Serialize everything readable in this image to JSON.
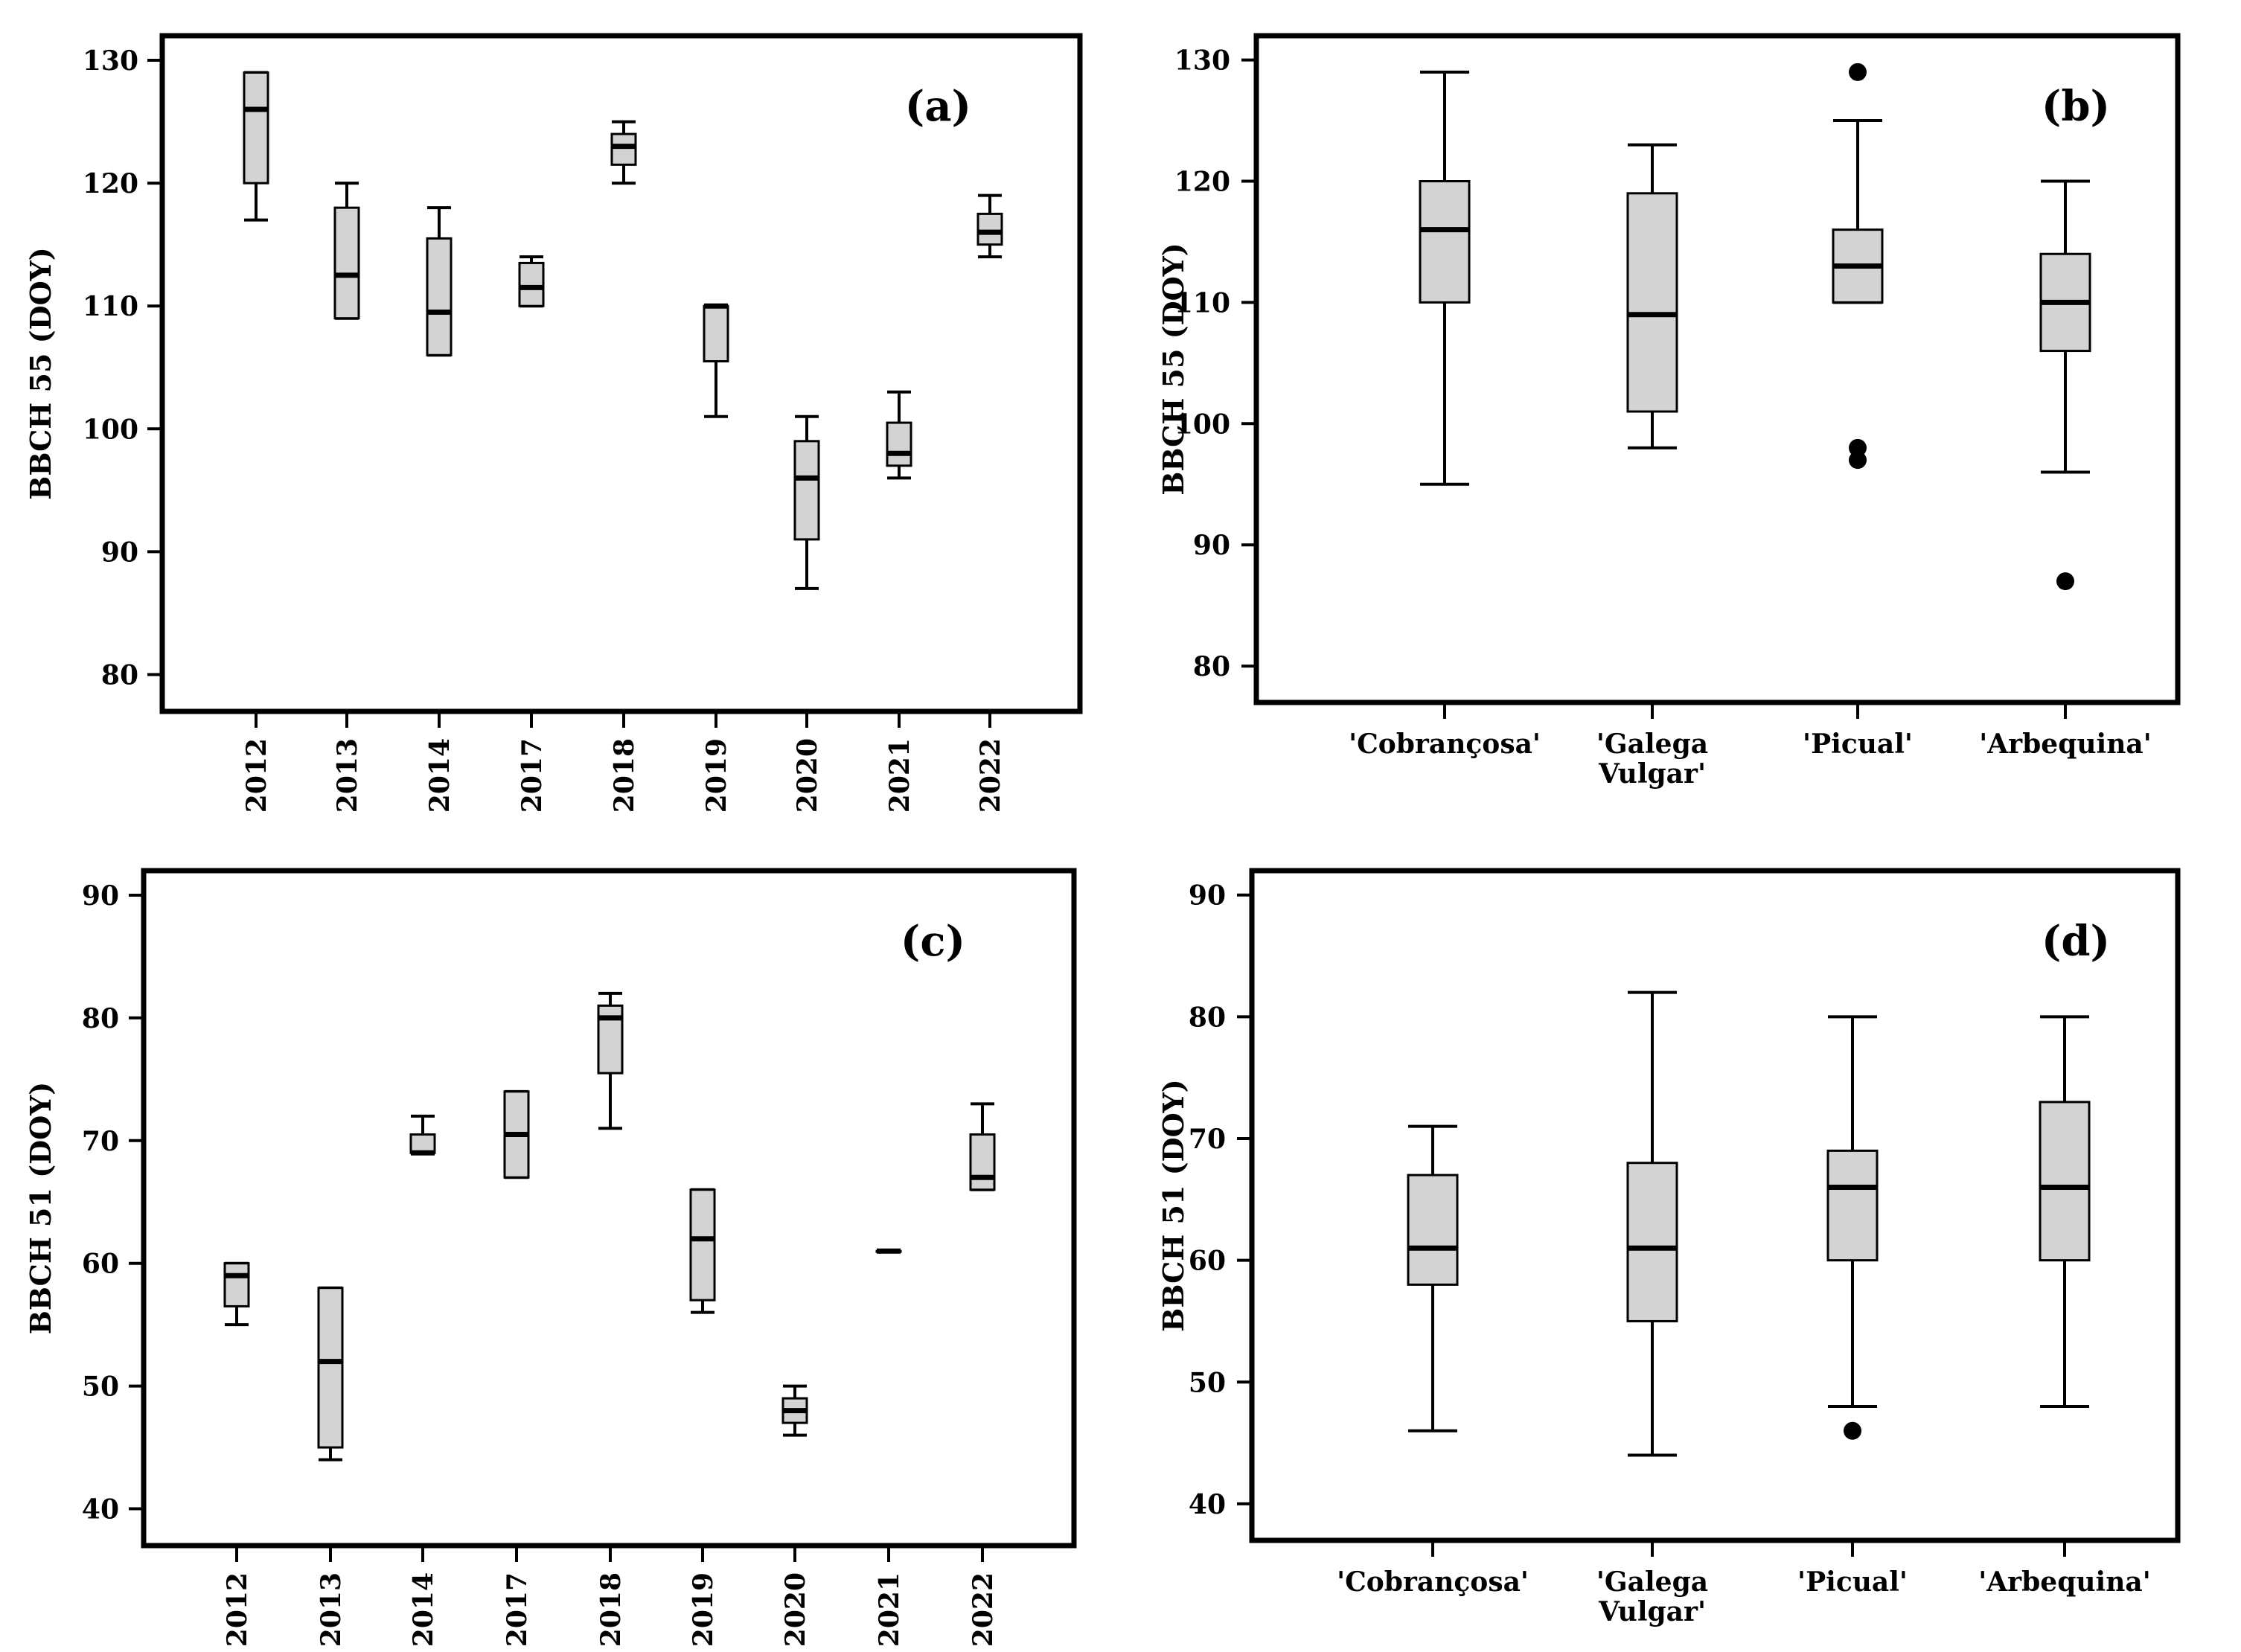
{
  "colors": {
    "box_fill": "#d3d3d3",
    "stroke": "#000000",
    "background": "#ffffff"
  },
  "chart_data": [
    {
      "panel_label": "(a)",
      "type": "boxplot",
      "ylabel": "BBCH 55 (DOY)",
      "ylim": [
        77,
        132
      ],
      "yticks": [
        80,
        90,
        100,
        110,
        120,
        130
      ],
      "xtick_rotation": "vertical",
      "categories": [
        "2012",
        "2013",
        "2014",
        "2017",
        "2018",
        "2019",
        "2020",
        "2021",
        "2022"
      ],
      "boxes": [
        {
          "min": 117,
          "q1": 120,
          "median": 126,
          "q3": 129,
          "max": 129,
          "outliers": []
        },
        {
          "min": 109,
          "q1": 109,
          "median": 112.5,
          "q3": 118,
          "max": 120,
          "outliers": []
        },
        {
          "min": 106,
          "q1": 106,
          "median": 109.5,
          "q3": 115.5,
          "max": 118,
          "outliers": []
        },
        {
          "min": 110,
          "q1": 110,
          "median": 111.5,
          "q3": 113.5,
          "max": 114,
          "outliers": []
        },
        {
          "min": 120,
          "q1": 121.5,
          "median": 123,
          "q3": 124,
          "max": 125,
          "outliers": []
        },
        {
          "min": 101,
          "q1": 105.5,
          "median": 110,
          "q3": 110,
          "max": 110,
          "outliers": []
        },
        {
          "min": 87,
          "q1": 91,
          "median": 96,
          "q3": 99,
          "max": 101,
          "outliers": []
        },
        {
          "min": 96,
          "q1": 97,
          "median": 98,
          "q3": 100.5,
          "max": 103,
          "outliers": []
        },
        {
          "min": 114,
          "q1": 115,
          "median": 116,
          "q3": 117.5,
          "max": 119,
          "outliers": []
        }
      ]
    },
    {
      "panel_label": "(b)",
      "type": "boxplot",
      "ylabel": "BBCH 55 (DOY)",
      "ylim": [
        77,
        132
      ],
      "yticks": [
        80,
        90,
        100,
        110,
        120,
        130
      ],
      "xtick_rotation": "horizontal",
      "categories": [
        "'Cobrançosa'",
        "'Galega Vulgar'",
        "'Picual'",
        "'Arbequina'"
      ],
      "category_lines": [
        [
          "'Cobrançosa'"
        ],
        [
          "'Galega",
          "Vulgar'"
        ],
        [
          "'Picual'"
        ],
        [
          "'Arbequina'"
        ]
      ],
      "boxes": [
        {
          "min": 95,
          "q1": 110,
          "median": 116,
          "q3": 120,
          "max": 129,
          "outliers": []
        },
        {
          "min": 98,
          "q1": 101,
          "median": 109,
          "q3": 119,
          "max": 123,
          "outliers": []
        },
        {
          "min": 110,
          "q1": 110,
          "median": 113,
          "q3": 116,
          "max": 125,
          "outliers": [
            129,
            98,
            97
          ]
        },
        {
          "min": 96,
          "q1": 106,
          "median": 110,
          "q3": 114,
          "max": 120,
          "outliers": [
            87
          ]
        }
      ]
    },
    {
      "panel_label": "(c)",
      "type": "boxplot",
      "ylabel": "BBCH 51 (DOY)",
      "ylim": [
        37,
        92
      ],
      "yticks": [
        40,
        50,
        60,
        70,
        80,
        90
      ],
      "xtick_rotation": "vertical",
      "categories": [
        "2012",
        "2013",
        "2014",
        "2017",
        "2018",
        "2019",
        "2020",
        "2021",
        "2022"
      ],
      "boxes": [
        {
          "min": 55,
          "q1": 56.5,
          "median": 59,
          "q3": 60,
          "max": 60,
          "outliers": []
        },
        {
          "min": 44,
          "q1": 45,
          "median": 52,
          "q3": 58,
          "max": 58,
          "outliers": []
        },
        {
          "min": 69,
          "q1": 69,
          "median": 69,
          "q3": 70.5,
          "max": 72,
          "outliers": []
        },
        {
          "min": 67,
          "q1": 67,
          "median": 70.5,
          "q3": 74,
          "max": 74,
          "outliers": []
        },
        {
          "min": 71,
          "q1": 75.5,
          "median": 80,
          "q3": 81,
          "max": 82,
          "outliers": []
        },
        {
          "min": 56,
          "q1": 57,
          "median": 62,
          "q3": 66,
          "max": 66,
          "outliers": []
        },
        {
          "min": 46,
          "q1": 47,
          "median": 48,
          "q3": 49,
          "max": 50,
          "outliers": []
        },
        {
          "min": 61,
          "q1": 61,
          "median": 61,
          "q3": 61,
          "max": 61,
          "outliers": []
        },
        {
          "min": 66,
          "q1": 66,
          "median": 67,
          "q3": 70.5,
          "max": 73,
          "outliers": []
        }
      ]
    },
    {
      "panel_label": "(d)",
      "type": "boxplot",
      "ylabel": "BBCH 51 (DOY)",
      "ylim": [
        37,
        92
      ],
      "yticks": [
        40,
        50,
        60,
        70,
        80,
        90
      ],
      "xtick_rotation": "horizontal",
      "categories": [
        "'Cobrançosa'",
        "'Galega Vulgar'",
        "'Picual'",
        "'Arbequina'"
      ],
      "category_lines": [
        [
          "'Cobrançosa'"
        ],
        [
          "'Galega",
          "Vulgar'"
        ],
        [
          "'Picual'"
        ],
        [
          "'Arbequina'"
        ]
      ],
      "boxes": [
        {
          "min": 46,
          "q1": 58,
          "median": 61,
          "q3": 67,
          "max": 71,
          "outliers": []
        },
        {
          "min": 44,
          "q1": 55,
          "median": 61,
          "q3": 68,
          "max": 82,
          "outliers": []
        },
        {
          "min": 48,
          "q1": 60,
          "median": 66,
          "q3": 69,
          "max": 80,
          "outliers": [
            46
          ]
        },
        {
          "min": 48,
          "q1": 60,
          "median": 66,
          "q3": 73,
          "max": 80,
          "outliers": []
        }
      ]
    }
  ]
}
